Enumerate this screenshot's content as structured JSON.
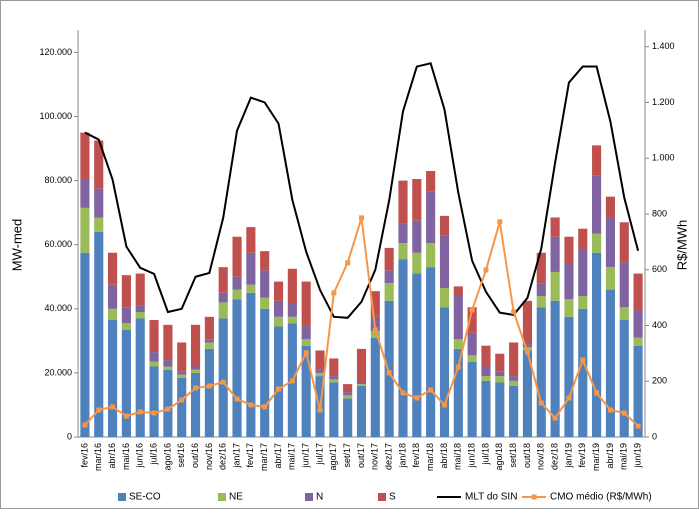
{
  "chart_data": {
    "type": "bar",
    "stacked": true,
    "y_label": "MW-med",
    "y2_label": "R$/MWh",
    "categories": [
      "fev/16",
      "mar/16",
      "abr/16",
      "mai/16",
      "jun/16",
      "jul/16",
      "ago/16",
      "set/16",
      "out/16",
      "nov/16",
      "dez/16",
      "jan/17",
      "fev/17",
      "mar/17",
      "abr/17",
      "mai/17",
      "jun/17",
      "jul/17",
      "ago/17",
      "set/17",
      "out/17",
      "nov/17",
      "dez/17",
      "jan/18",
      "fev/18",
      "mar/18",
      "abr/18",
      "mai/18",
      "jun/18",
      "jul/18",
      "ago/18",
      "set/18",
      "out/18",
      "nov/18",
      "dez/18",
      "jan/19",
      "fev/19",
      "mar/19",
      "abr/19",
      "mai/19",
      "jun/19"
    ],
    "ylim": [
      0,
      127000
    ],
    "yticks": [
      0,
      {
        "value": 20000,
        "label": "20.000"
      },
      {
        "value": 40000,
        "label": "40.000"
      },
      {
        "value": 60000,
        "label": "60.000"
      },
      {
        "value": 80000,
        "label": "80.000"
      },
      {
        "value": 100000,
        "label": "100.000"
      },
      {
        "value": 120000,
        "label": "120.000"
      }
    ],
    "y2lim": [
      0,
      1460
    ],
    "y2ticks": [
      0,
      200,
      400,
      600,
      800,
      {
        "value": 1000,
        "label": "1.000"
      },
      {
        "value": 1200,
        "label": "1.200"
      },
      {
        "value": 1400,
        "label": "1.400"
      }
    ],
    "series": [
      {
        "name": "SE-CO",
        "color": "#4f81bd",
        "values": [
          57500,
          64000,
          36500,
          33500,
          37000,
          22000,
          21000,
          18500,
          20000,
          27500,
          37000,
          43000,
          45000,
          40000,
          34500,
          35500,
          28500,
          19000,
          17000,
          12000,
          16000,
          31000,
          42500,
          55500,
          51000,
          53000,
          40500,
          27500,
          23500,
          17500,
          17000,
          16000,
          27000,
          40500,
          42500,
          37500,
          40000,
          57500,
          46000,
          36500,
          28500
        ]
      },
      {
        "name": "NE",
        "color": "#9bbb59",
        "values": [
          14000,
          4500,
          3500,
          2000,
          2000,
          1500,
          1000,
          1000,
          1000,
          2000,
          5000,
          3000,
          2500,
          3500,
          3000,
          2000,
          2000,
          1000,
          1000,
          1000,
          500,
          2000,
          5500,
          5000,
          6500,
          7500,
          6000,
          3000,
          2000,
          1500,
          2000,
          1500,
          1000,
          3500,
          9000,
          5500,
          4000,
          6000,
          7000,
          4000,
          2500
        ]
      },
      {
        "name": "N",
        "color": "#8064a2",
        "values": [
          9000,
          9000,
          7500,
          5000,
          2000,
          3000,
          2000,
          1000,
          1000,
          1000,
          3000,
          4000,
          10000,
          8500,
          5000,
          4000,
          4000,
          1000,
          1000,
          1000,
          500,
          4500,
          4000,
          6000,
          10000,
          16000,
          16500,
          13500,
          7000,
          3000,
          1500,
          1500,
          1000,
          4000,
          11000,
          11000,
          14500,
          18000,
          15500,
          14000,
          8500
        ]
      },
      {
        "name": "S",
        "color": "#c0504d",
        "values": [
          14500,
          15000,
          10000,
          10000,
          10000,
          10000,
          11000,
          9000,
          13000,
          7000,
          8000,
          12500,
          8000,
          6000,
          6000,
          11000,
          14000,
          6000,
          5500,
          2500,
          10500,
          8000,
          7000,
          13500,
          13000,
          6500,
          6000,
          3000,
          8000,
          6500,
          5500,
          10500,
          13500,
          9500,
          6000,
          8500,
          6500,
          9500,
          6500,
          12500,
          11500
        ]
      },
      {
        "name": "MLT do SIN",
        "type": "line",
        "color": "#000000",
        "values": [
          95000,
          92800,
          80300,
          59400,
          52800,
          50900,
          39000,
          40000,
          50000,
          51200,
          68400,
          95600,
          105900,
          104400,
          97800,
          74000,
          57800,
          45900,
          37500,
          37200,
          42200,
          52200,
          73800,
          101600,
          115600,
          116600,
          102200,
          76200,
          55000,
          45300,
          38800,
          38100,
          43400,
          58800,
          85600,
          110600,
          115600,
          115600,
          98400,
          74700,
          58100
        ]
      },
      {
        "name": "CMO médio (R$/MWh)",
        "type": "line",
        "axis": "y2",
        "marker": "square",
        "color": "#f79646",
        "values": [
          43,
          97,
          108,
          75,
          90,
          86,
          100,
          133,
          176,
          183,
          197,
          136,
          115,
          108,
          172,
          201,
          302,
          97,
          517,
          625,
          786,
          384,
          230,
          158,
          140,
          169,
          115,
          251,
          456,
          599,
          772,
          449,
          305,
          122,
          68,
          140,
          276,
          158,
          97,
          86,
          39
        ]
      }
    ]
  }
}
